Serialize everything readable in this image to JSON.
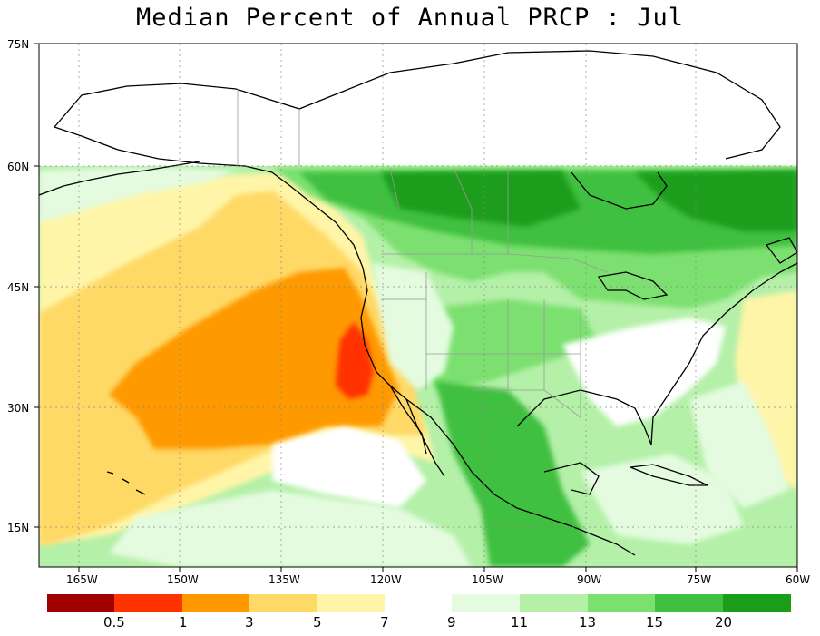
{
  "title": "Median Percent of Annual PRCP :    Jul",
  "lat_labels": [
    "75N",
    "60N",
    "45N",
    "30N",
    "15N"
  ],
  "lon_labels": [
    "165W",
    "150W",
    "135W",
    "120W",
    "105W",
    "90W",
    "75W",
    "60W"
  ],
  "legend": {
    "left_colors": [
      "#a00000",
      "#ff3300",
      "#ff9900",
      "#ffd966",
      "#fff5a8"
    ],
    "right_colors": [
      "#e4fbe0",
      "#b4f0a8",
      "#7ce070",
      "#40c040",
      "#1a9e1a"
    ],
    "labels": [
      "0.5",
      "1",
      "3",
      "5",
      "7",
      "9",
      "11",
      "13",
      "15",
      "20"
    ]
  }
}
